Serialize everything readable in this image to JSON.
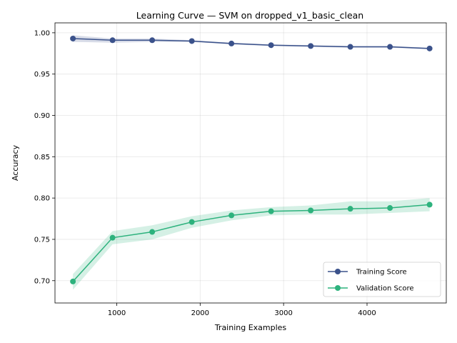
{
  "chart_data": {
    "type": "line",
    "title": "Learning Curve — SVM on dropped_v1_basic_clean",
    "xlabel": "Training Examples",
    "ylabel": "Accuracy",
    "xlim": [
      260,
      4950
    ],
    "ylim": [
      0.673,
      1.012
    ],
    "xticks": [
      1000,
      2000,
      3000,
      4000
    ],
    "yticks": [
      0.7,
      0.75,
      0.8,
      0.85,
      0.9,
      0.95,
      1.0
    ],
    "xtick_labels": [
      "1000",
      "2000",
      "3000",
      "4000"
    ],
    "ytick_labels": [
      "0.70",
      "0.75",
      "0.80",
      "0.85",
      "0.90",
      "0.95",
      "1.00"
    ],
    "grid": true,
    "legend_position": "lower-right",
    "x": [
      475,
      950,
      1425,
      1900,
      2375,
      2850,
      3325,
      3800,
      4275,
      4750
    ],
    "series": [
      {
        "name": "Training Score",
        "color": "#3b528b",
        "values": [
          0.993,
          0.991,
          0.991,
          0.99,
          0.987,
          0.985,
          0.984,
          0.983,
          0.983,
          0.981
        ],
        "band_low": [
          0.989,
          0.988,
          0.989,
          0.989,
          0.986,
          0.984,
          0.983,
          0.982,
          0.982,
          0.98
        ],
        "band_high": [
          0.997,
          0.993,
          0.993,
          0.991,
          0.988,
          0.986,
          0.985,
          0.984,
          0.984,
          0.982
        ]
      },
      {
        "name": "Validation Score",
        "color": "#2db27d",
        "values": [
          0.699,
          0.752,
          0.759,
          0.771,
          0.779,
          0.784,
          0.785,
          0.787,
          0.788,
          0.792
        ],
        "band_low": [
          0.689,
          0.744,
          0.75,
          0.764,
          0.773,
          0.779,
          0.78,
          0.78,
          0.782,
          0.784
        ],
        "band_high": [
          0.708,
          0.76,
          0.767,
          0.778,
          0.785,
          0.789,
          0.791,
          0.796,
          0.796,
          0.8
        ]
      }
    ]
  }
}
